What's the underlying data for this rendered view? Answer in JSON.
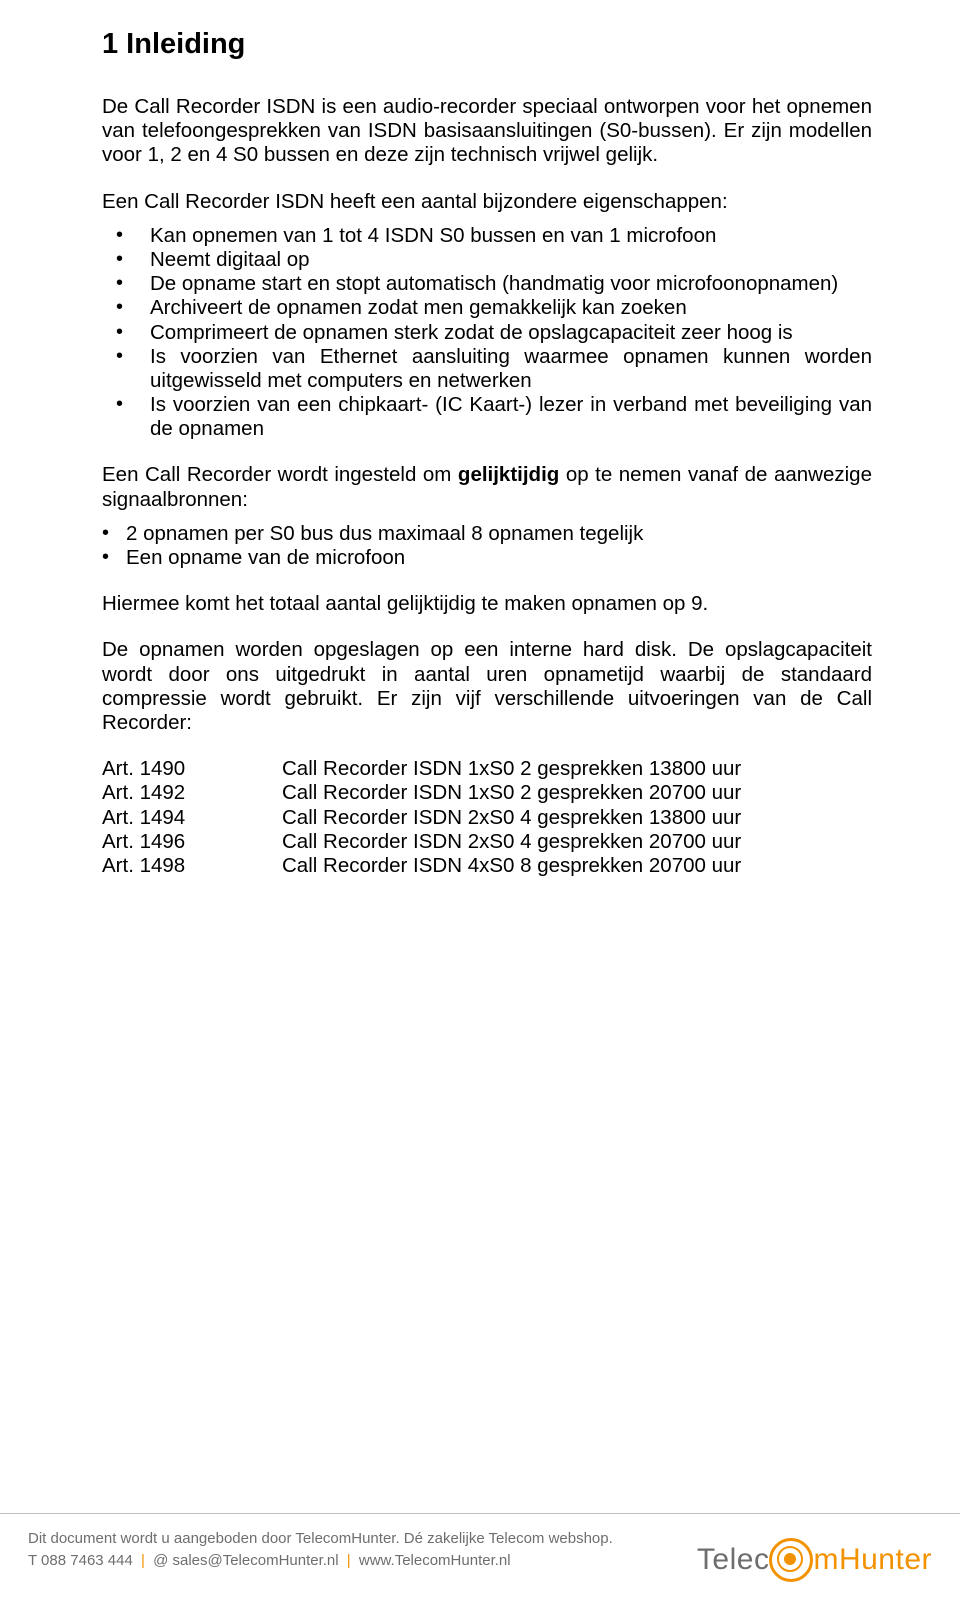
{
  "heading": "1  Inleiding",
  "para1": "De Call Recorder ISDN is een audio-recorder speciaal ontworpen voor het opnemen van telefoongesprekken van ISDN basisaansluitingen (S0-bussen). Er zijn modellen voor 1, 2 en 4 S0 bussen en deze zijn technisch vrijwel gelijk.",
  "para2": "Een Call Recorder ISDN heeft een aantal bijzondere eigenschappen:",
  "features": [
    "Kan opnemen van 1 tot 4 ISDN S0 bussen en van 1 microfoon",
    "Neemt digitaal op",
    "De opname start en stopt automatisch (handmatig voor microfoonopnamen)",
    "Archiveert de opnamen zodat men gemakkelijk kan zoeken",
    "Comprimeert de opnamen sterk zodat de opslagcapaciteit zeer hoog is",
    "Is voorzien van Ethernet aansluiting waarmee opnamen kunnen worden uitgewisseld met computers en netwerken",
    "Is voorzien van een chipkaart- (IC Kaart-) lezer in verband met beveiliging van de opnamen"
  ],
  "para3_pre": "Een Call Recorder wordt ingesteld om ",
  "para3_bold": "gelijktijdig",
  "para3_post": " op te nemen vanaf de aanwezige signaalbronnen:",
  "sources": [
    "2 opnamen per S0 bus dus maximaal 8 opnamen tegelijk",
    "Een opname van de microfoon"
  ],
  "para4": "Hiermee komt het totaal aantal gelijktijdig te maken opnamen op 9.",
  "para5": "De opnamen worden opgeslagen op een interne hard disk. De opslagcapaciteit  wordt door ons uitgedrukt in aantal uren opnametijd waarbij de standaard compressie wordt gebruikt. Er zijn vijf verschillende uitvoeringen van de Call Recorder:",
  "articles": [
    {
      "code": "Art. 1490",
      "desc": "Call Recorder ISDN 1xS0 2 gesprekken 13800 uur"
    },
    {
      "code": "Art. 1492",
      "desc": "Call Recorder ISDN 1xS0 2 gesprekken 20700 uur"
    },
    {
      "code": "Art. 1494",
      "desc": "Call Recorder ISDN 2xS0 4 gesprekken 13800 uur"
    },
    {
      "code": "Art. 1496",
      "desc": "Call Recorder ISDN 2xS0 4 gesprekken 20700 uur"
    },
    {
      "code": "Art. 1498",
      "desc": "Call Recorder ISDN 4xS0 8 gesprekken 20700 uur"
    }
  ],
  "footer": {
    "line1": "Dit document wordt u aangeboden door TelecomHunter. Dé zakelijke Telecom webshop.",
    "phone": "T 088 7463 444",
    "email": "@ sales@TelecomHunter.nl",
    "web": "www.TelecomHunter.nl",
    "logo_pre": "Telec",
    "logo_post": "mHunter",
    "colors": {
      "grey": "#6e6e6e",
      "orange": "#f39200",
      "rule": "#bfbfbf"
    }
  }
}
